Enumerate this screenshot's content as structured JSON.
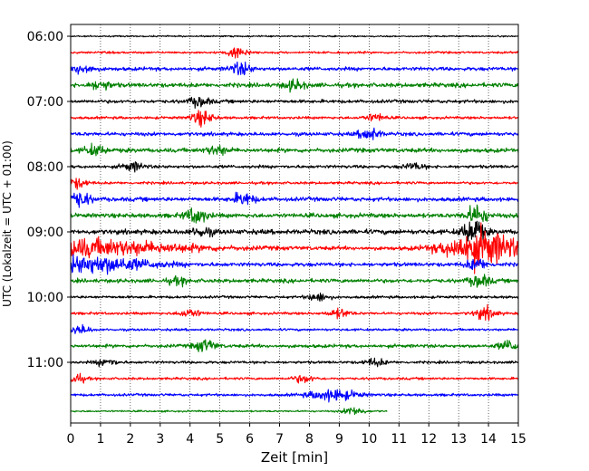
{
  "chart_data": {
    "type": "line",
    "chart_kind": "seismic helicorder",
    "title": "",
    "xlabel": "Zeit  [min]",
    "ylabel": "UTC (Lokalzeit = UTC + 01:00)",
    "xlim": [
      0,
      15
    ],
    "x_ticks": [
      "0",
      "1",
      "2",
      "3",
      "4",
      "5",
      "6",
      "7",
      "8",
      "9",
      "10",
      "11",
      "12",
      "13",
      "14",
      "15"
    ],
    "y_ticks": [
      "06:00",
      "07:00",
      "08:00",
      "09:00",
      "10:00",
      "11:00"
    ],
    "grid": "vertical dotted lines at each minute",
    "line_interval_minutes": 15,
    "trace_colors": [
      "#000000",
      "#ff0000",
      "#0000ff",
      "#008000"
    ],
    "rows": [
      {
        "start": "06:00",
        "color": "#000000",
        "level": 0.12,
        "end_min": 15,
        "bursts": []
      },
      {
        "start": "06:15",
        "color": "#ff0000",
        "level": 0.18,
        "end_min": 15,
        "bursts": [
          {
            "t": 5.6,
            "a": 0.9
          }
        ]
      },
      {
        "start": "06:30",
        "color": "#0000ff",
        "level": 0.3,
        "end_min": 15,
        "bursts": [
          {
            "t": 0.4,
            "a": 0.8
          },
          {
            "t": 5.7,
            "a": 1.0
          }
        ]
      },
      {
        "start": "06:45",
        "color": "#008000",
        "level": 0.35,
        "end_min": 15,
        "bursts": [
          {
            "t": 1.0,
            "a": 0.7
          },
          {
            "t": 7.5,
            "a": 0.8
          }
        ]
      },
      {
        "start": "07:00",
        "color": "#000000",
        "level": 0.28,
        "end_min": 15,
        "bursts": [
          {
            "t": 4.3,
            "a": 0.8
          }
        ]
      },
      {
        "start": "07:15",
        "color": "#ff0000",
        "level": 0.22,
        "end_min": 15,
        "bursts": [
          {
            "t": 4.4,
            "a": 1.2
          },
          {
            "t": 10.2,
            "a": 0.6
          }
        ]
      },
      {
        "start": "07:30",
        "color": "#0000ff",
        "level": 0.3,
        "end_min": 15,
        "bursts": [
          {
            "t": 10.0,
            "a": 1.0
          }
        ]
      },
      {
        "start": "07:45",
        "color": "#008000",
        "level": 0.35,
        "end_min": 15,
        "bursts": [
          {
            "t": 0.8,
            "a": 0.8
          },
          {
            "t": 4.9,
            "a": 0.7
          }
        ]
      },
      {
        "start": "08:00",
        "color": "#000000",
        "level": 0.26,
        "end_min": 15,
        "bursts": [
          {
            "t": 2.1,
            "a": 0.7
          },
          {
            "t": 11.5,
            "a": 0.5
          }
        ]
      },
      {
        "start": "08:15",
        "color": "#ff0000",
        "level": 0.22,
        "end_min": 15,
        "bursts": [
          {
            "t": 0.2,
            "a": 0.8
          }
        ]
      },
      {
        "start": "08:30",
        "color": "#0000ff",
        "level": 0.34,
        "end_min": 15,
        "bursts": [
          {
            "t": 0.3,
            "a": 1.2
          },
          {
            "t": 5.8,
            "a": 1.0
          }
        ]
      },
      {
        "start": "08:45",
        "color": "#008000",
        "level": 0.36,
        "end_min": 15,
        "bursts": [
          {
            "t": 4.2,
            "a": 1.3
          },
          {
            "t": 13.6,
            "a": 1.6
          }
        ]
      },
      {
        "start": "09:00",
        "color": "#000000",
        "level": 0.4,
        "end_min": 15,
        "bursts": [
          {
            "t": 13.5,
            "a": 2.2
          },
          {
            "t": 4.4,
            "a": 0.7
          }
        ]
      },
      {
        "start": "09:15",
        "color": "#ff0000",
        "level": 0.32,
        "end_min": 15,
        "bursts": [
          {
            "t": 0.1,
            "a": 1.4,
            "w": 3.5
          },
          {
            "t": 13.8,
            "a": 3.0,
            "w": 1.2
          }
        ]
      },
      {
        "start": "09:30",
        "color": "#0000ff",
        "level": 0.32,
        "end_min": 15,
        "bursts": [
          {
            "t": 0.6,
            "a": 1.4,
            "w": 2.0
          },
          {
            "t": 13.6,
            "a": 0.9
          }
        ]
      },
      {
        "start": "09:45",
        "color": "#008000",
        "level": 0.32,
        "end_min": 15,
        "bursts": [
          {
            "t": 13.7,
            "a": 1.0
          },
          {
            "t": 3.6,
            "a": 0.5
          }
        ]
      },
      {
        "start": "10:00",
        "color": "#000000",
        "level": 0.22,
        "end_min": 15,
        "bursts": [
          {
            "t": 8.3,
            "a": 0.7
          }
        ]
      },
      {
        "start": "10:15",
        "color": "#ff0000",
        "level": 0.22,
        "end_min": 15,
        "bursts": [
          {
            "t": 4.0,
            "a": 0.7
          },
          {
            "t": 9.0,
            "a": 0.7
          },
          {
            "t": 13.9,
            "a": 1.0
          }
        ]
      },
      {
        "start": "10:30",
        "color": "#0000ff",
        "level": 0.2,
        "end_min": 15,
        "bursts": [
          {
            "t": 0.3,
            "a": 0.7
          }
        ]
      },
      {
        "start": "10:45",
        "color": "#008000",
        "level": 0.28,
        "end_min": 15,
        "bursts": [
          {
            "t": 4.5,
            "a": 1.0
          },
          {
            "t": 14.7,
            "a": 0.8
          }
        ]
      },
      {
        "start": "11:00",
        "color": "#000000",
        "level": 0.22,
        "end_min": 15,
        "bursts": [
          {
            "t": 1.2,
            "a": 0.6
          },
          {
            "t": 10.2,
            "a": 0.6
          }
        ]
      },
      {
        "start": "11:15",
        "color": "#ff0000",
        "level": 0.2,
        "end_min": 15,
        "bursts": [
          {
            "t": 0.1,
            "a": 0.9
          },
          {
            "t": 7.8,
            "a": 0.6
          }
        ]
      },
      {
        "start": "11:30",
        "color": "#0000ff",
        "level": 0.22,
        "end_min": 15,
        "bursts": [
          {
            "t": 8.8,
            "a": 0.9,
            "w": 0.8
          }
        ]
      },
      {
        "start": "11:45",
        "color": "#008000",
        "level": 0.14,
        "end_min": 10.6,
        "bursts": [
          {
            "t": 9.5,
            "a": 0.7
          }
        ]
      }
    ]
  }
}
